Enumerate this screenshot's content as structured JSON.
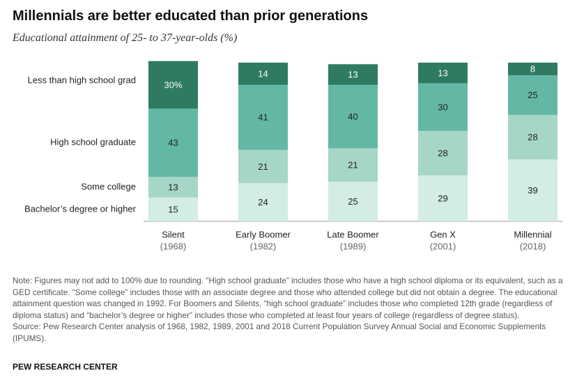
{
  "chart_data": {
    "type": "stacked_bar",
    "title": "Millennials are better educated than prior generations",
    "subtitle": "Educational attainment of 25- to 37-year-olds (%)",
    "categories": [
      "Silent",
      "Early Boomer",
      "Late Boomer",
      "Gen X",
      "Millennial"
    ],
    "category_years": [
      "(1968)",
      "(1982)",
      "(1989)",
      "(2001)",
      "(2018)"
    ],
    "series": [
      {
        "name": "Bachelor’s degree or higher",
        "color": "#d3ece5",
        "values": [
          15,
          24,
          25,
          29,
          39
        ]
      },
      {
        "name": "Some college",
        "color": "#a6d6c8",
        "values": [
          13,
          21,
          21,
          28,
          28
        ]
      },
      {
        "name": "High school graduate",
        "color": "#63b8a5",
        "values": [
          43,
          41,
          40,
          30,
          25
        ]
      },
      {
        "name": "Less than high school grad",
        "color": "#2f7a63",
        "values": [
          30,
          14,
          13,
          13,
          8
        ],
        "value_labels": [
          "30%",
          "14",
          "13",
          "13",
          "8"
        ]
      }
    ],
    "note": "Note: Figures may not add to 100% due to rounding. “High school graduate” includes those who have a high school diploma or its equivalent, such as a GED certificate. “Some college” includes those with an associate degree and those who attended college but did not obtain a degree. The educational attainment question was changed in 1992. For Boomers and Silents, “high school graduate” includes those who completed 12th grade (regardless of diploma status) and “bachelor’s degree or higher” includes those who completed at least four years of college (regardless of degree status).",
    "source": "Source: Pew Research Center analysis of 1968, 1982, 1989, 2001 and 2018 Current Population Survey Annual Social and Economic Supplements (IPUMS).",
    "credit": "PEW RESEARCH CENTER"
  }
}
